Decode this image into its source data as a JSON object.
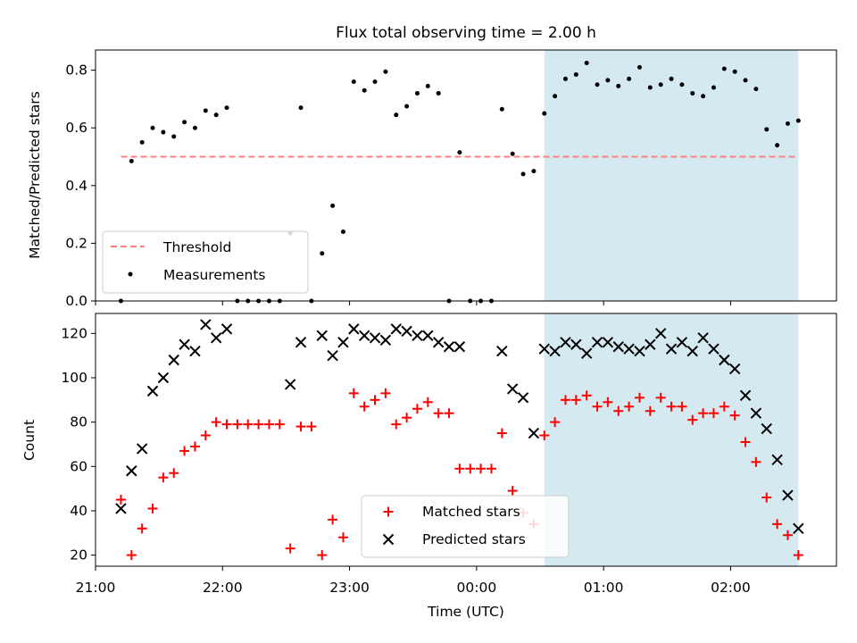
{
  "title": "Flux total observing time = 2.00 h",
  "colors": {
    "threshold": "#ff7f7f",
    "measurement": "#000000",
    "matched": "#ff0000",
    "predicted": "#000000",
    "highlight": "#d4eaf0"
  },
  "chart_data": [
    {
      "type": "scatter",
      "panel": "top",
      "xlabel": "",
      "ylabel": "Matched/Predicted stars",
      "xlim": [
        "21:00",
        "02:50"
      ],
      "ylim": [
        0,
        0.87
      ],
      "yticks": [
        0.0,
        0.2,
        0.4,
        0.6,
        0.8
      ],
      "ytick_labels": [
        "0.0",
        "0.2",
        "0.4",
        "0.6",
        "0.8"
      ],
      "highlight_span": [
        "00:32",
        "02:32"
      ],
      "legend": {
        "placement": "lower-left",
        "entries": [
          "Threshold",
          "Measurements"
        ]
      },
      "threshold": {
        "name": "Threshold",
        "value": 0.5,
        "x_range": [
          "21:12",
          "02:32"
        ]
      },
      "series": [
        {
          "name": "Measurements",
          "x": [
            "21:12",
            "21:17",
            "21:22",
            "21:27",
            "21:32",
            "21:37",
            "21:42",
            "21:47",
            "21:52",
            "21:57",
            "22:02",
            "22:07",
            "22:12",
            "22:17",
            "22:22",
            "22:27",
            "22:32",
            "22:37",
            "22:42",
            "22:47",
            "22:52",
            "22:57",
            "23:02",
            "23:07",
            "23:12",
            "23:17",
            "23:22",
            "23:27",
            "23:32",
            "23:37",
            "23:42",
            "23:47",
            "23:52",
            "23:57",
            "00:02",
            "00:07",
            "00:12",
            "00:17",
            "00:22",
            "00:27",
            "00:32",
            "00:37",
            "00:42",
            "00:47",
            "00:52",
            "00:57",
            "01:02",
            "01:07",
            "01:12",
            "01:17",
            "01:22",
            "01:27",
            "01:32",
            "01:37",
            "01:42",
            "01:47",
            "01:52",
            "01:57",
            "02:02",
            "02:07",
            "02:12",
            "02:17",
            "02:22",
            "02:27",
            "02:32"
          ],
          "y": [
            0.0,
            0.485,
            0.55,
            0.6,
            0.585,
            0.57,
            0.62,
            0.6,
            0.66,
            0.645,
            0.67,
            0.0,
            0.0,
            0.0,
            0.0,
            0.0,
            0.235,
            0.67,
            0.0,
            0.165,
            0.33,
            0.24,
            0.76,
            0.73,
            0.76,
            0.795,
            0.645,
            0.675,
            0.72,
            0.745,
            0.72,
            0.0,
            0.515,
            0.0,
            0.0,
            0.0,
            0.665,
            0.51,
            0.44,
            0.45,
            0.65,
            0.71,
            0.77,
            0.785,
            0.825,
            0.75,
            0.765,
            0.745,
            0.77,
            0.81,
            0.74,
            0.75,
            0.77,
            0.75,
            0.72,
            0.71,
            0.74,
            0.805,
            0.795,
            0.765,
            0.735,
            0.595,
            0.54,
            0.615,
            0.625
          ]
        }
      ]
    },
    {
      "type": "scatter",
      "panel": "bottom",
      "xlabel": "Time (UTC)",
      "ylabel": "Count",
      "xlim": [
        "21:00",
        "02:50"
      ],
      "ylim": [
        15,
        129
      ],
      "yticks": [
        20,
        40,
        60,
        80,
        100,
        120
      ],
      "ytick_labels": [
        "20",
        "40",
        "60",
        "80",
        "100",
        "120"
      ],
      "xticks": [
        "21:00",
        "22:00",
        "23:00",
        "00:00",
        "01:00",
        "02:00"
      ],
      "xtick_labels": [
        "21:00",
        "22:00",
        "23:00",
        "00:00",
        "01:00",
        "02:00"
      ],
      "highlight_span": [
        "00:32",
        "02:32"
      ],
      "legend": {
        "placement": "lower-center",
        "entries": [
          "Matched stars",
          "Predicted stars"
        ]
      },
      "series": [
        {
          "name": "Matched stars",
          "x": [
            "21:12",
            "21:17",
            "21:22",
            "21:27",
            "21:32",
            "21:37",
            "21:42",
            "21:47",
            "21:52",
            "21:57",
            "22:02",
            "22:07",
            "22:12",
            "22:17",
            "22:22",
            "22:27",
            "22:32",
            "22:37",
            "22:42",
            "22:47",
            "22:52",
            "22:57",
            "23:02",
            "23:07",
            "23:12",
            "23:17",
            "23:22",
            "23:27",
            "23:32",
            "23:37",
            "23:42",
            "23:47",
            "23:52",
            "23:57",
            "00:02",
            "00:07",
            "00:12",
            "00:17",
            "00:22",
            "00:27",
            "00:32",
            "00:37",
            "00:42",
            "00:47",
            "00:52",
            "00:57",
            "01:02",
            "01:07",
            "01:12",
            "01:17",
            "01:22",
            "01:27",
            "01:32",
            "01:37",
            "01:42",
            "01:47",
            "01:52",
            "01:57",
            "02:02",
            "02:07",
            "02:12",
            "02:17",
            "02:22",
            "02:27",
            "02:32"
          ],
          "y": [
            45,
            20,
            32,
            41,
            55,
            57,
            67,
            69,
            74,
            80,
            79,
            79,
            79,
            79,
            79,
            79,
            23,
            78,
            78,
            20,
            36,
            28,
            93,
            87,
            90,
            93,
            79,
            82,
            86,
            89,
            84,
            84,
            59,
            59,
            59,
            59,
            75,
            49,
            39,
            34,
            74,
            80,
            90,
            90,
            92,
            87,
            89,
            85,
            87,
            91,
            85,
            91,
            87,
            87,
            81,
            84,
            84,
            87,
            83,
            71,
            62,
            46,
            34,
            29,
            20
          ]
        },
        {
          "name": "Predicted stars",
          "x": [
            "21:12",
            "21:17",
            "21:22",
            "21:27",
            "21:32",
            "21:37",
            "21:42",
            "21:47",
            "21:52",
            "21:57",
            "22:02",
            "22:32",
            "22:37",
            "22:47",
            "22:52",
            "22:57",
            "23:02",
            "23:07",
            "23:12",
            "23:17",
            "23:22",
            "23:27",
            "23:32",
            "23:37",
            "23:42",
            "23:47",
            "23:52",
            "00:12",
            "00:17",
            "00:22",
            "00:27",
            "00:32",
            "00:37",
            "00:42",
            "00:47",
            "00:52",
            "00:57",
            "01:02",
            "01:07",
            "01:12",
            "01:17",
            "01:22",
            "01:27",
            "01:32",
            "01:37",
            "01:42",
            "01:47",
            "01:52",
            "01:57",
            "02:02",
            "02:07",
            "02:12",
            "02:17",
            "02:22",
            "02:27",
            "02:32"
          ],
          "y": [
            41,
            58,
            68,
            94,
            100,
            108,
            115,
            112,
            124,
            118,
            122,
            97,
            116,
            119,
            110,
            116,
            122,
            119,
            118,
            117,
            122,
            121,
            119,
            119,
            116,
            114,
            114,
            112,
            95,
            91,
            75,
            113,
            112,
            116,
            115,
            111,
            116,
            116,
            114,
            113,
            112,
            115,
            120,
            113,
            116,
            112,
            118,
            113,
            108,
            104,
            92,
            84,
            77,
            63,
            47,
            32
          ]
        }
      ]
    }
  ]
}
